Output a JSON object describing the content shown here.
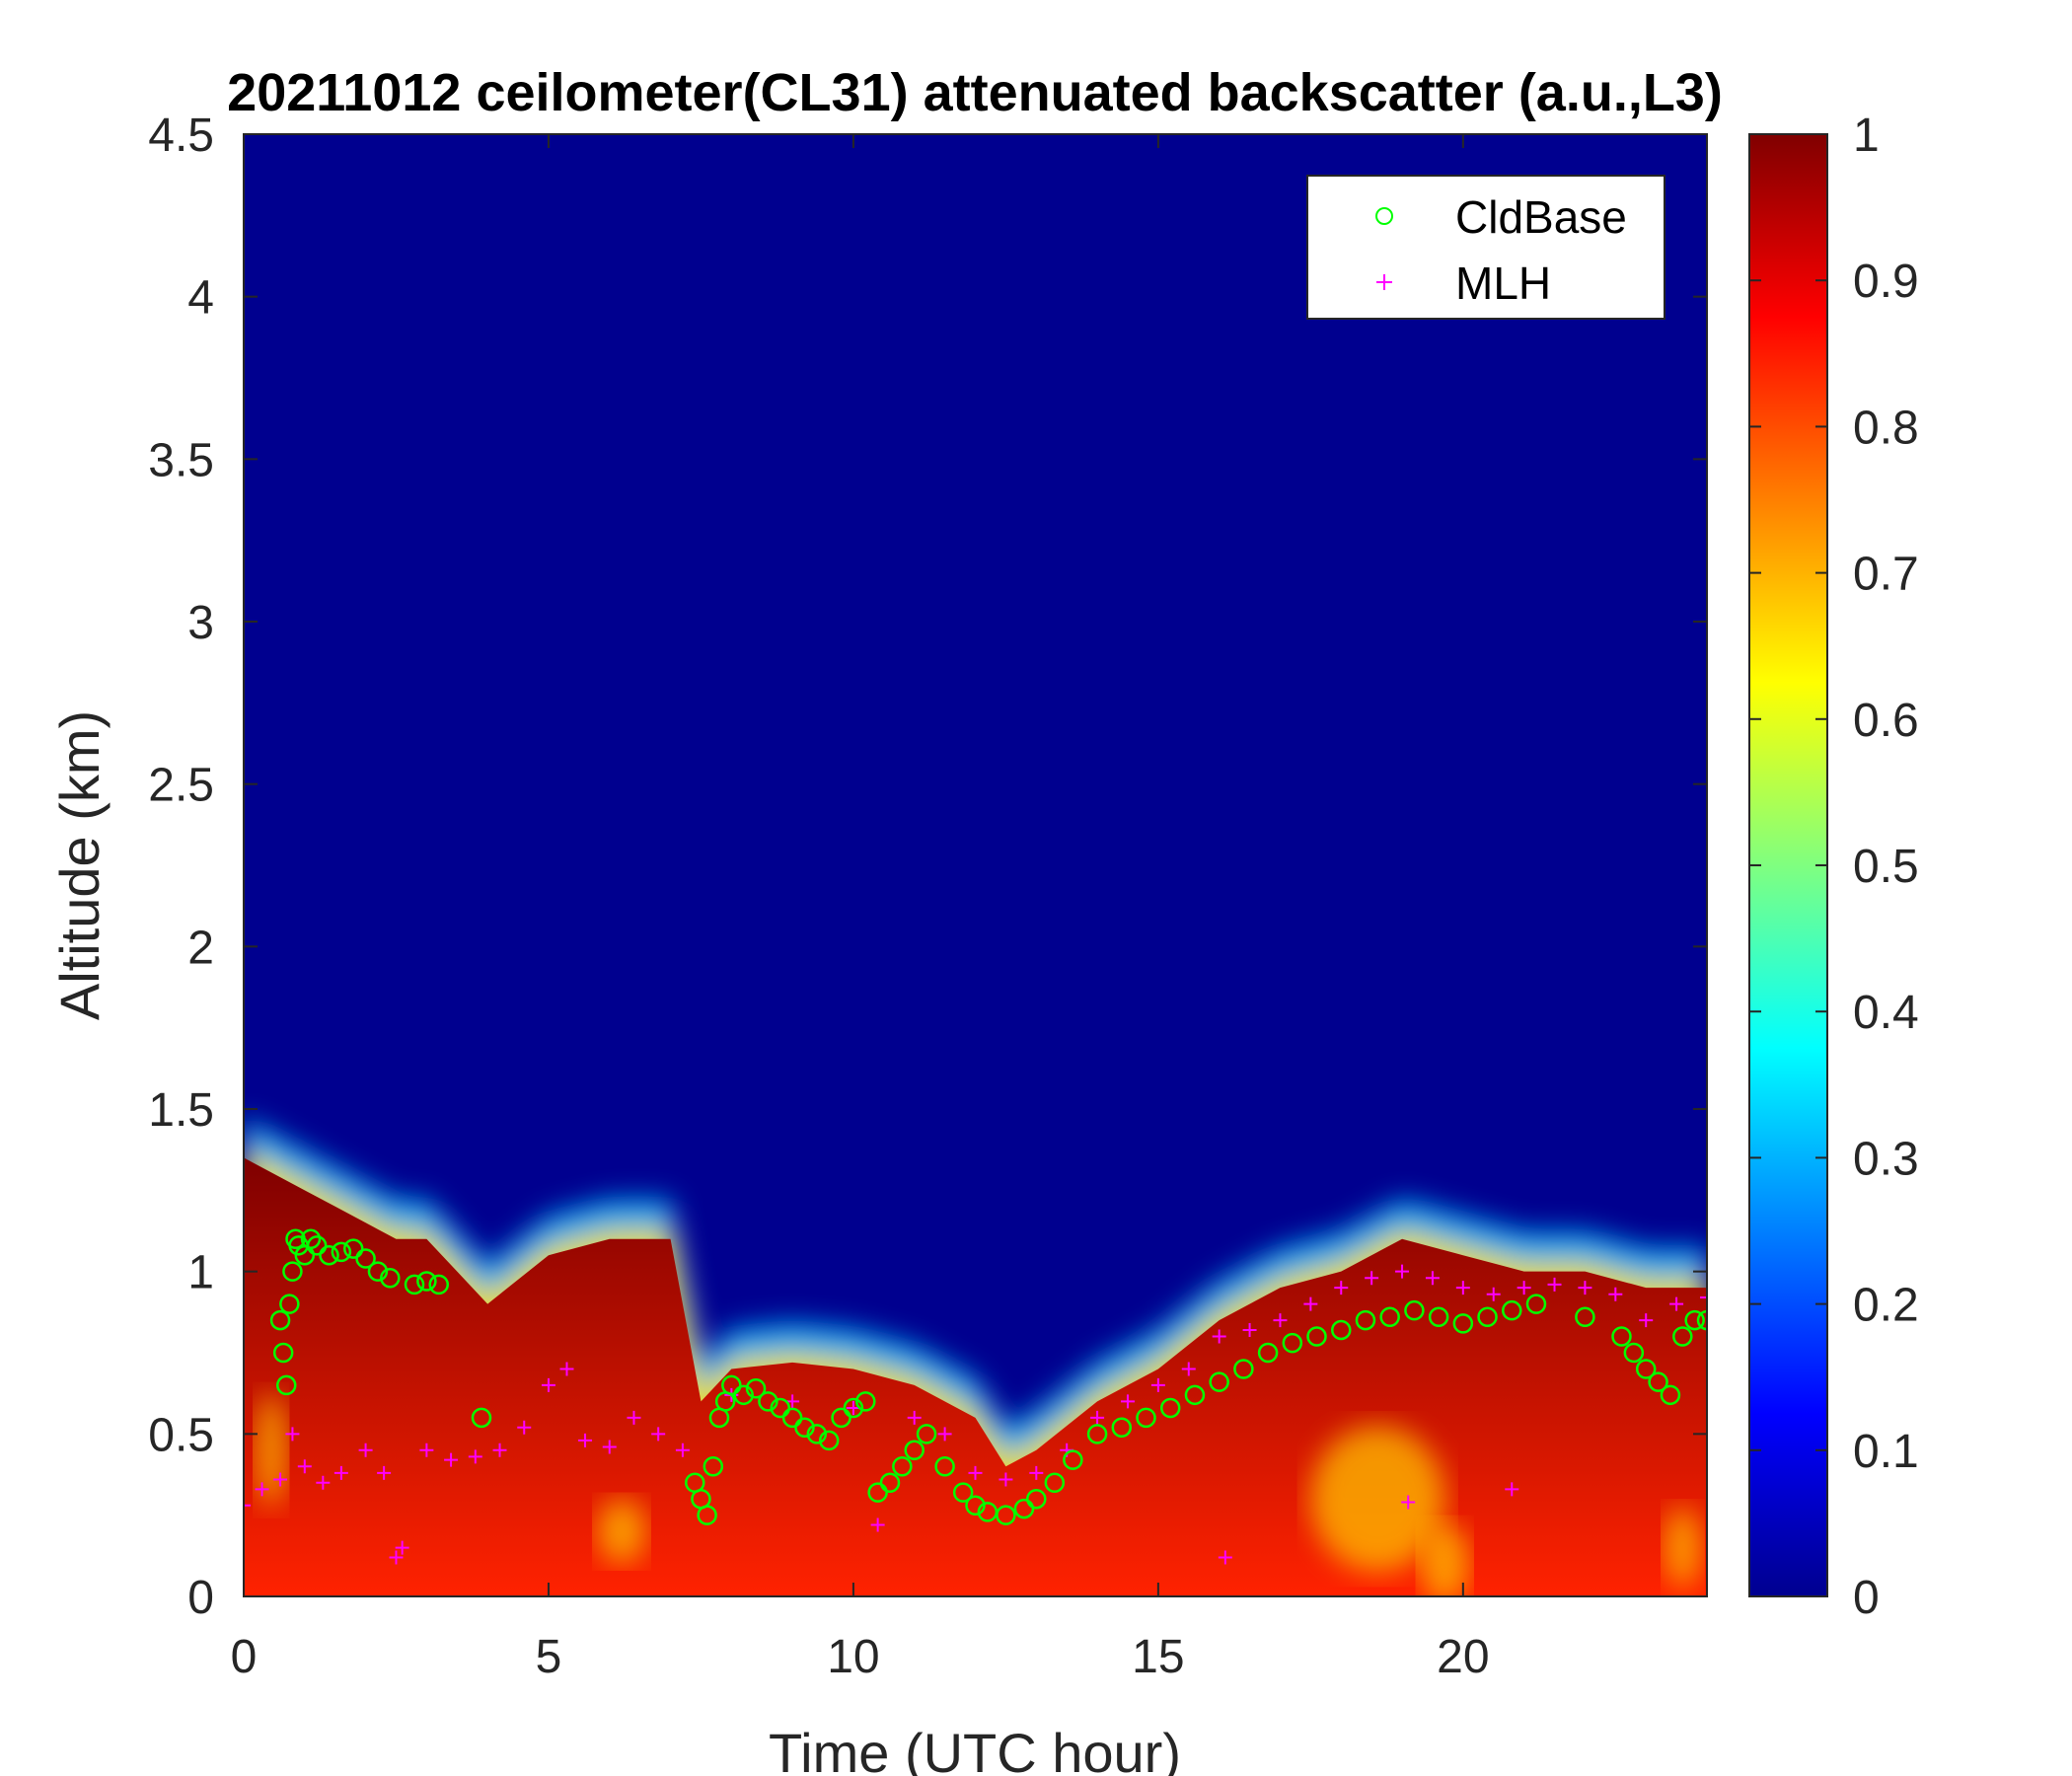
{
  "chart_data": {
    "type": "heatmap",
    "title": "20211012 ceilometer(CL31) attenuated backscatter (a.u.,L3)",
    "xlabel": "Time (UTC hour)",
    "ylabel": "Altitude (km)",
    "xlim": [
      0,
      24
    ],
    "ylim": [
      0,
      4.5
    ],
    "xticks": [
      "0",
      "5",
      "10",
      "15",
      "20"
    ],
    "yticks": [
      "0",
      "0.5",
      "1",
      "1.5",
      "2",
      "2.5",
      "3",
      "3.5",
      "4",
      "4.5"
    ],
    "colorbar": {
      "range": [
        0,
        1
      ],
      "colormap": "jet",
      "ticks": [
        "0",
        "0.1",
        "0.2",
        "0.3",
        "0.4",
        "0.5",
        "0.6",
        "0.7",
        "0.8",
        "0.9",
        "1"
      ]
    },
    "legend": {
      "placement": "top-right",
      "entries": [
        {
          "label": "CldBase",
          "marker": "o",
          "color": "#00ff00"
        },
        {
          "label": "MLH",
          "marker": "+",
          "color": "#ff00ff"
        }
      ]
    },
    "boundary_layer_top_km": {
      "hours": [
        0,
        0.5,
        1,
        1.5,
        2,
        2.5,
        3,
        3.5,
        4,
        5,
        6,
        7,
        7.5,
        8,
        9,
        10,
        11,
        12,
        12.5,
        13,
        14,
        15,
        16,
        17,
        18,
        19,
        20,
        21,
        22,
        23,
        24
      ],
      "values": [
        1.35,
        1.3,
        1.25,
        1.2,
        1.15,
        1.1,
        1.1,
        1.0,
        0.9,
        1.05,
        1.1,
        1.1,
        0.6,
        0.7,
        0.72,
        0.7,
        0.65,
        0.55,
        0.4,
        0.45,
        0.6,
        0.7,
        0.85,
        0.95,
        1.0,
        1.1,
        1.05,
        1.0,
        1.0,
        0.95,
        0.95
      ]
    },
    "series": [
      {
        "name": "CldBase",
        "x": [
          0.6,
          0.65,
          0.7,
          0.75,
          0.8,
          0.85,
          0.9,
          1.0,
          1.1,
          1.2,
          1.4,
          1.6,
          1.8,
          2.0,
          2.2,
          2.4,
          2.8,
          3.0,
          3.2,
          3.9,
          7.4,
          7.5,
          7.6,
          7.7,
          7.8,
          7.9,
          8.0,
          8.2,
          8.4,
          8.6,
          8.8,
          9.0,
          9.2,
          9.4,
          9.6,
          9.8,
          10.0,
          10.2,
          10.4,
          10.6,
          10.8,
          11.0,
          11.2,
          11.5,
          11.8,
          12.0,
          12.2,
          12.5,
          12.8,
          13.0,
          13.3,
          13.6,
          14.0,
          14.4,
          14.8,
          15.2,
          15.6,
          16.0,
          16.4,
          16.8,
          17.2,
          17.6,
          18.0,
          18.4,
          18.8,
          19.2,
          19.6,
          20.0,
          20.4,
          20.8,
          21.2,
          22.0,
          22.6,
          22.8,
          23.0,
          23.2,
          23.4,
          23.6,
          23.8,
          24.0
        ],
        "y": [
          0.85,
          0.75,
          0.65,
          0.9,
          1.0,
          1.1,
          1.08,
          1.05,
          1.1,
          1.08,
          1.05,
          1.06,
          1.07,
          1.04,
          1.0,
          0.98,
          0.96,
          0.97,
          0.96,
          0.55,
          0.35,
          0.3,
          0.25,
          0.4,
          0.55,
          0.6,
          0.65,
          0.62,
          0.64,
          0.6,
          0.58,
          0.55,
          0.52,
          0.5,
          0.48,
          0.55,
          0.58,
          0.6,
          0.32,
          0.35,
          0.4,
          0.45,
          0.5,
          0.4,
          0.32,
          0.28,
          0.26,
          0.25,
          0.27,
          0.3,
          0.35,
          0.42,
          0.5,
          0.52,
          0.55,
          0.58,
          0.62,
          0.66,
          0.7,
          0.75,
          0.78,
          0.8,
          0.82,
          0.85,
          0.86,
          0.88,
          0.86,
          0.84,
          0.86,
          0.88,
          0.9,
          0.86,
          0.8,
          0.75,
          0.7,
          0.66,
          0.62,
          0.8,
          0.85,
          0.85
        ]
      },
      {
        "name": "MLH",
        "x": [
          0,
          0.3,
          0.6,
          0.8,
          1.0,
          1.3,
          1.6,
          2.0,
          2.3,
          2.6,
          3.0,
          3.4,
          3.8,
          4.2,
          4.6,
          5.0,
          5.3,
          5.6,
          6.0,
          6.4,
          6.8,
          7.2,
          8.0,
          9.0,
          10.0,
          10.4,
          11.0,
          11.5,
          12.0,
          12.5,
          13.0,
          13.5,
          14.0,
          14.5,
          15.0,
          15.5,
          16.0,
          16.5,
          17.0,
          17.5,
          18.0,
          18.5,
          19.0,
          19.5,
          20.0,
          20.5,
          21.0,
          21.5,
          22.0,
          22.5,
          23.0,
          23.5,
          24.0,
          2.5,
          16.1,
          19.1,
          20.8
        ],
        "y": [
          0.28,
          0.33,
          0.36,
          0.5,
          0.4,
          0.35,
          0.38,
          0.45,
          0.38,
          0.15,
          0.45,
          0.42,
          0.43,
          0.45,
          0.52,
          0.65,
          0.7,
          0.48,
          0.46,
          0.55,
          0.5,
          0.45,
          0.62,
          0.6,
          0.58,
          0.22,
          0.55,
          0.5,
          0.38,
          0.36,
          0.38,
          0.45,
          0.55,
          0.6,
          0.65,
          0.7,
          0.8,
          0.82,
          0.85,
          0.9,
          0.95,
          0.98,
          1.0,
          0.98,
          0.95,
          0.93,
          0.95,
          0.96,
          0.95,
          0.93,
          0.85,
          0.9,
          0.92,
          0.12,
          0.12,
          0.29,
          0.33
        ]
      }
    ]
  }
}
